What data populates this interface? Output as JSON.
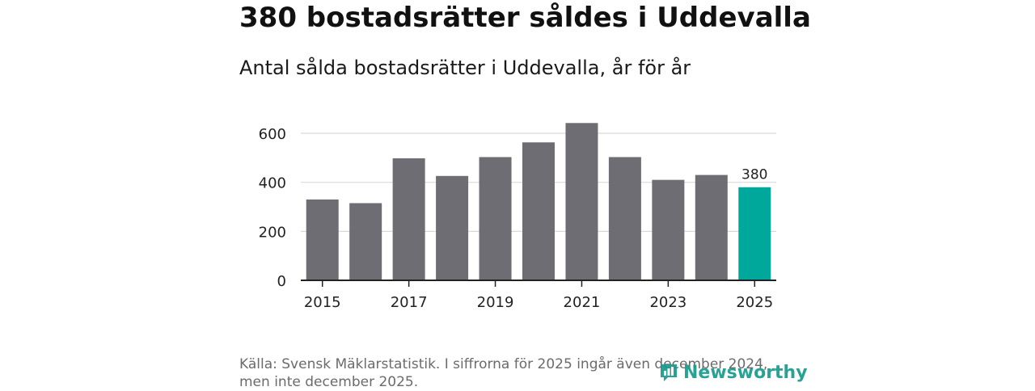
{
  "headline": "380 bostadsrätter såldes i Uddevalla",
  "colors": {
    "bar": "#6e6d73",
    "highlight": "#00a79b",
    "grid": "#d9d9d9",
    "axis": "#222222",
    "text": "#222222",
    "brand": "#169b8c"
  },
  "chart_data": {
    "type": "bar",
    "title": "Antal sålda bostadsrätter i Uddevalla, år för år",
    "xlabel": "",
    "ylabel": "",
    "ylim": [
      0,
      650
    ],
    "yticks": [
      0,
      200,
      400,
      600
    ],
    "categories": [
      "2015",
      "2016",
      "2017",
      "2018",
      "2019",
      "2020",
      "2021",
      "2022",
      "2023",
      "2024",
      "2025"
    ],
    "xtick_labels": [
      "2015",
      "2017",
      "2019",
      "2021",
      "2023",
      "2025"
    ],
    "values": [
      330,
      315,
      498,
      426,
      503,
      563,
      642,
      503,
      410,
      430,
      380
    ],
    "highlight_index": 10,
    "annotation": "380",
    "grid": true
  },
  "source": {
    "line1": "Källa: Svensk Mäklarstatistik. I siffrorna för 2025 ingår även december 2024,",
    "line2": "men inte december 2025."
  },
  "brand": {
    "name": "Newsworthy",
    "icon": "newsworthy-logo-icon"
  }
}
